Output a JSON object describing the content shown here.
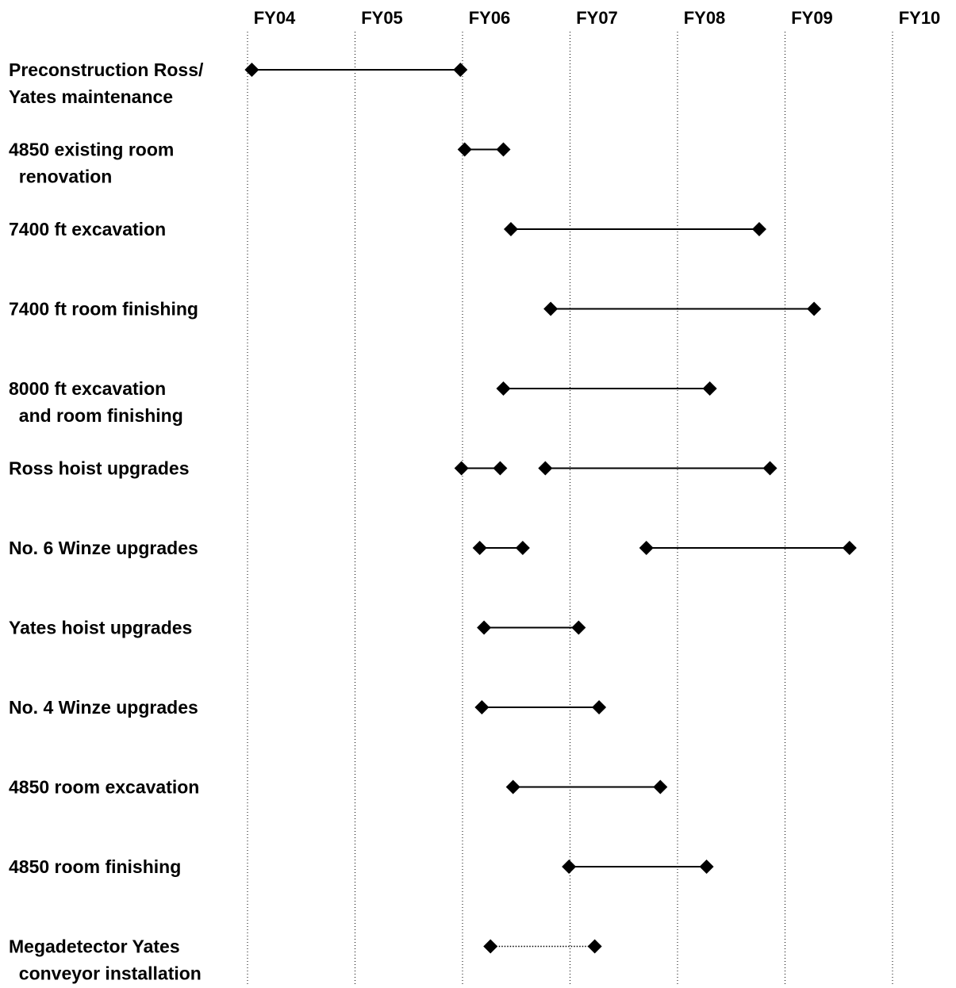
{
  "chart_data": {
    "type": "gantt",
    "x_axis": {
      "ticks": [
        "FY04",
        "FY05",
        "FY06",
        "FY07",
        "FY08",
        "FY09",
        "FY10"
      ],
      "range": [
        0,
        6
      ],
      "gridlines": "dotted vertical"
    },
    "tasks": [
      {
        "label_lines": [
          "Preconstruction Ross/",
          "Yates maintenance"
        ],
        "segments": [
          {
            "start": 0.04,
            "end": 1.98,
            "style": "solid"
          }
        ]
      },
      {
        "label_lines": [
          "4850 existing room",
          "  renovation"
        ],
        "segments": [
          {
            "start": 2.02,
            "end": 2.38,
            "style": "solid"
          }
        ]
      },
      {
        "label_lines": [
          "7400 ft excavation"
        ],
        "segments": [
          {
            "start": 2.45,
            "end": 4.76,
            "style": "solid"
          }
        ]
      },
      {
        "label_lines": [
          "7400 ft room finishing"
        ],
        "segments": [
          {
            "start": 2.82,
            "end": 5.27,
            "style": "solid"
          }
        ]
      },
      {
        "label_lines": [
          "8000 ft excavation",
          "  and room finishing"
        ],
        "segments": [
          {
            "start": 2.38,
            "end": 4.3,
            "style": "solid"
          }
        ]
      },
      {
        "label_lines": [
          "Ross hoist upgrades"
        ],
        "segments": [
          {
            "start": 1.99,
            "end": 2.35,
            "style": "solid"
          },
          {
            "start": 2.77,
            "end": 4.86,
            "style": "solid"
          }
        ]
      },
      {
        "label_lines": [
          "No. 6 Winze upgrades"
        ],
        "segments": [
          {
            "start": 2.16,
            "end": 2.56,
            "style": "solid"
          },
          {
            "start": 3.71,
            "end": 5.6,
            "style": "solid"
          }
        ]
      },
      {
        "label_lines": [
          "Yates hoist upgrades"
        ],
        "segments": [
          {
            "start": 2.2,
            "end": 3.08,
            "style": "solid"
          }
        ]
      },
      {
        "label_lines": [
          "No. 4 Winze upgrades"
        ],
        "segments": [
          {
            "start": 2.18,
            "end": 3.27,
            "style": "solid"
          }
        ]
      },
      {
        "label_lines": [
          "4850 room excavation"
        ],
        "segments": [
          {
            "start": 2.47,
            "end": 3.84,
            "style": "solid"
          }
        ]
      },
      {
        "label_lines": [
          "4850 room finishing"
        ],
        "segments": [
          {
            "start": 2.99,
            "end": 4.27,
            "style": "solid"
          }
        ]
      },
      {
        "label_lines": [
          "Megadetector Yates",
          "  conveyor installation"
        ],
        "segments": [
          {
            "start": 2.26,
            "end": 3.23,
            "style": "dotted"
          }
        ]
      }
    ]
  }
}
